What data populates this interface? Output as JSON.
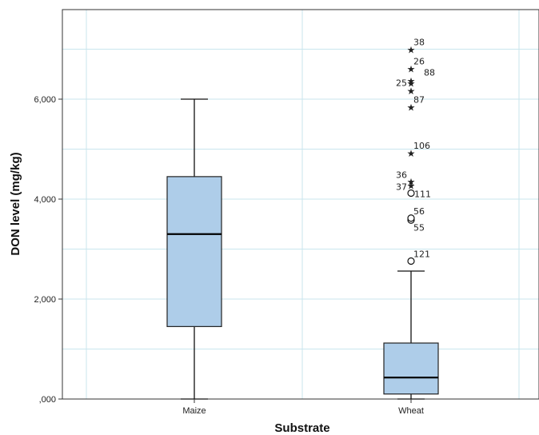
{
  "chart_data": {
    "type": "boxplot",
    "title": "",
    "xlabel": "Substrate",
    "ylabel": "DON level (mg/kg)",
    "ylim": [
      0,
      7700
    ],
    "yticks": [
      {
        "value": 0,
        "label": ",000"
      },
      {
        "value": 2000,
        "label": "2,000"
      },
      {
        "value": 4000,
        "label": "4,000"
      },
      {
        "value": 6000,
        "label": "6,000"
      }
    ],
    "grid": true,
    "box_color": "#aecde9",
    "grid_color": "#c9e6ee",
    "categories": [
      "Maize",
      "Wheat"
    ],
    "boxes": [
      {
        "category": "Maize",
        "whisker_low": 0,
        "q1": 1450,
        "median": 3300,
        "q3": 4450,
        "whisker_high": 6000,
        "outliers": []
      },
      {
        "category": "Wheat",
        "whisker_low": 0,
        "q1": 100,
        "median": 430,
        "q3": 1120,
        "whisker_high": 2560,
        "outliers": [
          {
            "label": "121",
            "value": 2760,
            "marker": "circle"
          },
          {
            "label": "55",
            "value": 3580,
            "marker": "circle"
          },
          {
            "label": "56",
            "value": 3620,
            "marker": "circle"
          },
          {
            "label": "111",
            "value": 4120,
            "marker": "circle"
          },
          {
            "label": "37",
            "value": 4280,
            "marker": "star"
          },
          {
            "label": "36",
            "value": 4360,
            "marker": "star"
          },
          {
            "label": "106",
            "value": 4930,
            "marker": "star"
          },
          {
            "label": "87",
            "value": 5850,
            "marker": "star"
          },
          {
            "label": "",
            "value": 6180,
            "marker": "star"
          },
          {
            "label": "25",
            "value": 6330,
            "marker": "star"
          },
          {
            "label": "88",
            "value": 6380,
            "marker": "star"
          },
          {
            "label": "26",
            "value": 6620,
            "marker": "star"
          },
          {
            "label": "38",
            "value": 7000,
            "marker": "star"
          }
        ]
      }
    ]
  }
}
